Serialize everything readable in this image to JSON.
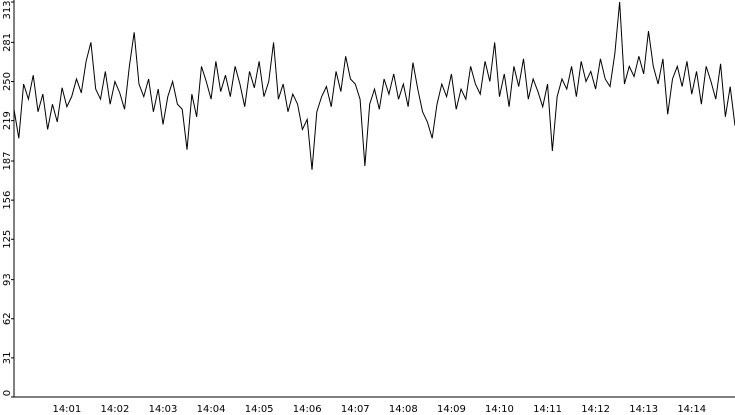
{
  "chart_data": {
    "type": "line",
    "color": "#000000",
    "categories": [
      null,
      null,
      null,
      null,
      null,
      null,
      null,
      null,
      null,
      null,
      null,
      "14:01",
      null,
      null,
      null,
      null,
      null,
      null,
      null,
      null,
      null,
      "14:02",
      null,
      null,
      null,
      null,
      null,
      null,
      null,
      null,
      null,
      "14:03",
      null,
      null,
      null,
      null,
      null,
      null,
      null,
      null,
      null,
      "14:04",
      null,
      null,
      null,
      null,
      null,
      null,
      null,
      null,
      null,
      "14:05",
      null,
      null,
      null,
      null,
      null,
      null,
      null,
      null,
      null,
      "14:06",
      null,
      null,
      null,
      null,
      null,
      null,
      null,
      null,
      null,
      "14:07",
      null,
      null,
      null,
      null,
      null,
      null,
      null,
      null,
      null,
      "14:08",
      null,
      null,
      null,
      null,
      null,
      null,
      null,
      null,
      null,
      "14:09",
      null,
      null,
      null,
      null,
      null,
      null,
      null,
      null,
      null,
      "14:10",
      null,
      null,
      null,
      null,
      null,
      null,
      null,
      null,
      null,
      "14:11",
      null,
      null,
      null,
      null,
      null,
      null,
      null,
      null,
      null,
      "14:12",
      null,
      null,
      null,
      null,
      null,
      null,
      null,
      null,
      null,
      "14:13",
      null,
      null,
      null,
      null,
      null,
      null,
      null,
      null,
      null,
      "14:14",
      null,
      null,
      null,
      null,
      null,
      null,
      null,
      null,
      null
    ],
    "values": [
      228,
      205,
      248,
      236,
      255,
      226,
      240,
      212,
      232,
      218,
      245,
      230,
      238,
      252,
      241,
      266,
      281,
      244,
      236,
      258,
      232,
      250,
      241,
      228,
      262,
      289,
      248,
      238,
      252,
      226,
      244,
      216,
      238,
      250,
      232,
      228,
      196,
      240,
      222,
      262,
      250,
      236,
      266,
      242,
      255,
      238,
      262,
      248,
      230,
      258,
      245,
      266,
      238,
      250,
      281,
      236,
      248,
      226,
      240,
      232,
      212,
      220,
      180,
      226,
      238,
      246,
      230,
      258,
      242,
      270,
      252,
      248,
      236,
      183,
      232,
      244,
      228,
      252,
      240,
      256,
      236,
      248,
      230,
      265,
      244,
      226,
      218,
      205,
      232,
      248,
      238,
      256,
      228,
      244,
      236,
      262,
      248,
      240,
      266,
      250,
      281,
      238,
      256,
      230,
      262,
      246,
      268,
      236,
      252,
      242,
      230,
      248,
      195,
      238,
      252,
      244,
      262,
      238,
      266,
      250,
      258,
      244,
      268,
      252,
      246,
      272,
      313,
      248,
      262,
      254,
      270,
      256,
      290,
      262,
      248,
      268,
      224,
      252,
      262,
      246,
      266,
      240,
      258,
      232,
      262,
      250,
      236,
      264,
      222,
      246,
      215
    ],
    "ylim": [
      0,
      313
    ],
    "yticks": [
      0,
      31,
      62,
      93,
      125,
      156,
      187,
      219,
      250,
      281,
      313
    ]
  }
}
